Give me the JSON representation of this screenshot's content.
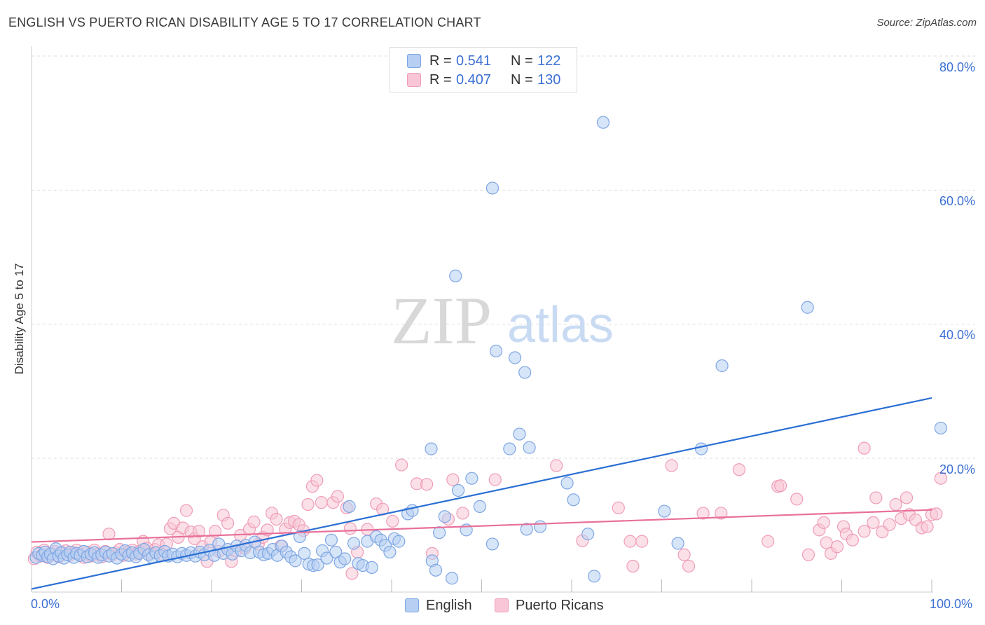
{
  "header": {
    "title": "ENGLISH VS PUERTO RICAN DISABILITY AGE 5 TO 17 CORRELATION CHART",
    "source": "Source: ZipAtlas.com"
  },
  "watermark": {
    "zip": "ZIP",
    "atlas": "atlas"
  },
  "legend": {
    "rows": [
      {
        "r_label": "R =",
        "r_value": "0.541",
        "n_label": "N =",
        "n_value": "122"
      },
      {
        "r_label": "R =",
        "r_value": "0.407",
        "n_label": "N =",
        "n_value": "130"
      }
    ]
  },
  "colors": {
    "english_fill": "#b7cff2",
    "english_stroke": "#7ea6e4",
    "english_line": "#2a6fd4",
    "pr_fill": "#f8c6d6",
    "pr_stroke": "#ef9db8",
    "pr_line": "#e8709a",
    "tick_text": "#3b6fd4",
    "grid": "#dddddd"
  },
  "chart_data": {
    "type": "scatter",
    "title": "ENGLISH VS PUERTO RICAN DISABILITY AGE 5 TO 17 CORRELATION CHART",
    "xlabel": "",
    "ylabel": "Disability Age 5 to 17",
    "xlim": [
      0,
      100
    ],
    "ylim": [
      0,
      80
    ],
    "x_tick_labels": [
      "0.0%",
      "100.0%"
    ],
    "y_ticks": [
      20,
      40,
      60,
      80
    ],
    "y_tick_labels": [
      "20.0%",
      "40.0%",
      "60.0%",
      "80.0%"
    ],
    "grid": true,
    "legend_position": "bottom-center",
    "series": [
      {
        "name": "English",
        "r": 0.541,
        "n": 122,
        "trend": {
          "x": [
            0,
            100
          ],
          "y": [
            0.5,
            29.0
          ]
        },
        "points": [
          [
            0.5,
            5.2
          ],
          [
            0.8,
            5.8
          ],
          [
            1.2,
            5.5
          ],
          [
            1.5,
            6.0
          ],
          [
            1.8,
            5.3
          ],
          [
            2.1,
            5.7
          ],
          [
            2.4,
            5.0
          ],
          [
            2.7,
            6.5
          ],
          [
            3.0,
            5.4
          ],
          [
            3.3,
            5.9
          ],
          [
            3.6,
            5.1
          ],
          [
            4.0,
            5.6
          ],
          [
            4.3,
            6.0
          ],
          [
            4.7,
            5.2
          ],
          [
            5.0,
            5.8
          ],
          [
            5.4,
            5.5
          ],
          [
            5.8,
            6.1
          ],
          [
            6.2,
            5.3
          ],
          [
            6.6,
            5.7
          ],
          [
            7.0,
            5.9
          ],
          [
            7.4,
            5.2
          ],
          [
            7.8,
            5.6
          ],
          [
            8.2,
            6.0
          ],
          [
            8.6,
            5.4
          ],
          [
            9.0,
            5.8
          ],
          [
            9.5,
            5.1
          ],
          [
            10.0,
            5.7
          ],
          [
            10.4,
            6.2
          ],
          [
            10.8,
            5.5
          ],
          [
            11.2,
            5.9
          ],
          [
            11.6,
            5.3
          ],
          [
            12.0,
            5.8
          ],
          [
            12.5,
            6.4
          ],
          [
            13.0,
            5.6
          ],
          [
            13.4,
            5.2
          ],
          [
            13.8,
            5.9
          ],
          [
            14.3,
            5.5
          ],
          [
            14.8,
            6.1
          ],
          [
            15.2,
            5.4
          ],
          [
            15.7,
            5.7
          ],
          [
            16.2,
            5.3
          ],
          [
            16.7,
            5.8
          ],
          [
            17.2,
            5.5
          ],
          [
            17.7,
            5.9
          ],
          [
            18.2,
            5.4
          ],
          [
            18.7,
            6.0
          ],
          [
            19.2,
            5.6
          ],
          [
            19.8,
            6.3
          ],
          [
            20.3,
            5.5
          ],
          [
            20.8,
            7.2
          ],
          [
            21.3,
            5.8
          ],
          [
            21.8,
            6.4
          ],
          [
            22.3,
            5.7
          ],
          [
            22.8,
            6.9
          ],
          [
            23.3,
            6.2
          ],
          [
            23.8,
            7.0
          ],
          [
            24.3,
            5.9
          ],
          [
            24.8,
            7.5
          ],
          [
            25.3,
            6.0
          ],
          [
            25.8,
            5.6
          ],
          [
            26.3,
            5.8
          ],
          [
            26.8,
            6.4
          ],
          [
            27.3,
            5.5
          ],
          [
            27.8,
            6.9
          ],
          [
            28.3,
            6.0
          ],
          [
            28.8,
            5.3
          ],
          [
            29.3,
            4.7
          ],
          [
            29.8,
            8.3
          ],
          [
            30.3,
            5.8
          ],
          [
            30.8,
            4.2
          ],
          [
            31.3,
            4.0
          ],
          [
            31.8,
            4.1
          ],
          [
            32.3,
            6.2
          ],
          [
            32.8,
            5.1
          ],
          [
            33.3,
            7.8
          ],
          [
            33.8,
            6.0
          ],
          [
            34.3,
            4.5
          ],
          [
            34.8,
            5.0
          ],
          [
            35.3,
            12.8
          ],
          [
            35.8,
            7.3
          ],
          [
            36.3,
            4.3
          ],
          [
            36.8,
            4.0
          ],
          [
            37.3,
            7.6
          ],
          [
            37.8,
            3.7
          ],
          [
            38.3,
            8.3
          ],
          [
            38.8,
            7.8
          ],
          [
            39.3,
            7.0
          ],
          [
            39.8,
            6.0
          ],
          [
            40.3,
            8.0
          ],
          [
            40.8,
            7.6
          ],
          [
            41.8,
            11.7
          ],
          [
            42.3,
            12.2
          ],
          [
            44.5,
            4.7
          ],
          [
            44.9,
            3.3
          ],
          [
            45.3,
            8.9
          ],
          [
            45.9,
            11.3
          ],
          [
            46.7,
            2.1
          ],
          [
            47.4,
            15.2
          ],
          [
            48.3,
            9.3
          ],
          [
            48.9,
            17.0
          ],
          [
            49.8,
            12.8
          ],
          [
            51.2,
            7.2
          ],
          [
            55.0,
            9.4
          ],
          [
            56.5,
            9.8
          ],
          [
            59.5,
            16.3
          ],
          [
            60.2,
            13.8
          ],
          [
            61.8,
            8.7
          ],
          [
            62.5,
            2.4
          ],
          [
            70.3,
            12.1
          ],
          [
            71.8,
            7.3
          ],
          [
            76.7,
            33.8
          ],
          [
            86.2,
            42.5
          ],
          [
            101.0,
            24.5
          ],
          [
            47.1,
            47.2
          ],
          [
            51.2,
            60.3
          ],
          [
            63.5,
            70.1
          ],
          [
            51.6,
            36.0
          ],
          [
            53.7,
            35.0
          ],
          [
            54.8,
            32.8
          ],
          [
            55.3,
            21.6
          ],
          [
            54.2,
            23.6
          ],
          [
            53.1,
            21.4
          ],
          [
            44.4,
            21.4
          ],
          [
            74.4,
            21.4
          ]
        ]
      },
      {
        "name": "Puerto Ricans",
        "r": 0.407,
        "n": 130,
        "trend": {
          "x": [
            0,
            100
          ],
          "y": [
            7.5,
            12.3
          ]
        },
        "points": [
          [
            0.3,
            5.0
          ],
          [
            0.6,
            6.0
          ],
          [
            1.0,
            5.4
          ],
          [
            1.4,
            6.3
          ],
          [
            1.8,
            5.2
          ],
          [
            2.2,
            5.8
          ],
          [
            2.6,
            6.1
          ],
          [
            3.0,
            5.3
          ],
          [
            3.4,
            5.9
          ],
          [
            3.8,
            6.2
          ],
          [
            4.2,
            5.5
          ],
          [
            4.6,
            5.9
          ],
          [
            5.0,
            6.3
          ],
          [
            5.4,
            5.6
          ],
          [
            5.8,
            5.2
          ],
          [
            6.2,
            6.0
          ],
          [
            6.6,
            5.4
          ],
          [
            7.0,
            6.3
          ],
          [
            7.4,
            5.7
          ],
          [
            7.8,
            5.3
          ],
          [
            8.2,
            6.1
          ],
          [
            8.6,
            8.7
          ],
          [
            9.0,
            5.6
          ],
          [
            9.4,
            5.9
          ],
          [
            9.8,
            6.4
          ],
          [
            10.2,
            5.5
          ],
          [
            10.7,
            6.0
          ],
          [
            11.2,
            6.3
          ],
          [
            11.6,
            5.7
          ],
          [
            12.0,
            6.1
          ],
          [
            12.4,
            7.6
          ],
          [
            12.8,
            6.6
          ],
          [
            13.2,
            5.8
          ],
          [
            13.7,
            6.4
          ],
          [
            14.1,
            7.1
          ],
          [
            14.6,
            5.6
          ],
          [
            15.0,
            7.2
          ],
          [
            15.4,
            9.5
          ],
          [
            15.8,
            10.3
          ],
          [
            16.3,
            8.2
          ],
          [
            16.8,
            9.6
          ],
          [
            17.2,
            12.2
          ],
          [
            17.7,
            9.0
          ],
          [
            18.1,
            8.0
          ],
          [
            18.6,
            9.1
          ],
          [
            19.0,
            6.8
          ],
          [
            19.5,
            4.6
          ],
          [
            19.9,
            7.5
          ],
          [
            20.4,
            9.1
          ],
          [
            20.8,
            6.1
          ],
          [
            21.3,
            11.5
          ],
          [
            21.8,
            10.3
          ],
          [
            22.2,
            4.6
          ],
          [
            22.7,
            6.2
          ],
          [
            23.2,
            8.5
          ],
          [
            23.7,
            6.6
          ],
          [
            24.2,
            9.4
          ],
          [
            24.7,
            10.5
          ],
          [
            25.2,
            7.2
          ],
          [
            25.7,
            8.2
          ],
          [
            26.2,
            9.3
          ],
          [
            26.7,
            11.8
          ],
          [
            27.2,
            10.9
          ],
          [
            27.7,
            6.9
          ],
          [
            28.2,
            9.4
          ],
          [
            28.7,
            10.4
          ],
          [
            29.2,
            10.6
          ],
          [
            29.7,
            10.1
          ],
          [
            30.2,
            9.2
          ],
          [
            30.7,
            13.1
          ],
          [
            31.2,
            15.8
          ],
          [
            31.7,
            16.7
          ],
          [
            32.2,
            13.4
          ],
          [
            33.5,
            13.4
          ],
          [
            34.0,
            14.3
          ],
          [
            35.0,
            12.6
          ],
          [
            35.4,
            9.5
          ],
          [
            35.6,
            2.8
          ],
          [
            36.2,
            6.0
          ],
          [
            37.3,
            9.4
          ],
          [
            38.3,
            13.2
          ],
          [
            39.0,
            12.4
          ],
          [
            40.1,
            10.6
          ],
          [
            41.1,
            19.0
          ],
          [
            42.8,
            16.2
          ],
          [
            43.9,
            16.1
          ],
          [
            44.5,
            5.8
          ],
          [
            46.3,
            10.9
          ],
          [
            46.8,
            16.8
          ],
          [
            47.9,
            11.8
          ],
          [
            51.5,
            16.8
          ],
          [
            58.3,
            18.9
          ],
          [
            61.2,
            7.7
          ],
          [
            65.2,
            12.6
          ],
          [
            66.5,
            7.6
          ],
          [
            66.8,
            3.9
          ],
          [
            67.8,
            7.6
          ],
          [
            71.1,
            18.9
          ],
          [
            72.5,
            5.6
          ],
          [
            73.0,
            3.9
          ],
          [
            74.6,
            11.8
          ],
          [
            76.6,
            11.8
          ],
          [
            78.6,
            18.3
          ],
          [
            81.8,
            7.6
          ],
          [
            82.9,
            15.8
          ],
          [
            83.2,
            15.9
          ],
          [
            85.0,
            13.9
          ],
          [
            86.3,
            5.6
          ],
          [
            87.5,
            9.3
          ],
          [
            88.0,
            10.4
          ],
          [
            88.3,
            7.4
          ],
          [
            88.8,
            5.8
          ],
          [
            89.5,
            6.8
          ],
          [
            90.2,
            9.8
          ],
          [
            90.5,
            8.7
          ],
          [
            91.2,
            7.8
          ],
          [
            92.5,
            21.5
          ],
          [
            92.5,
            9.1
          ],
          [
            93.5,
            10.4
          ],
          [
            93.8,
            14.1
          ],
          [
            94.5,
            9.0
          ],
          [
            95.3,
            10.1
          ],
          [
            96.0,
            13.1
          ],
          [
            96.6,
            11.0
          ],
          [
            97.2,
            14.1
          ],
          [
            97.5,
            11.6
          ],
          [
            98.2,
            10.8
          ],
          [
            98.9,
            9.6
          ],
          [
            99.5,
            9.8
          ],
          [
            100.0,
            11.6
          ],
          [
            100.5,
            11.7
          ],
          [
            101.0,
            17.0
          ]
        ]
      }
    ]
  },
  "bottom_legend": {
    "english": "English",
    "puerto_ricans": "Puerto Ricans"
  }
}
